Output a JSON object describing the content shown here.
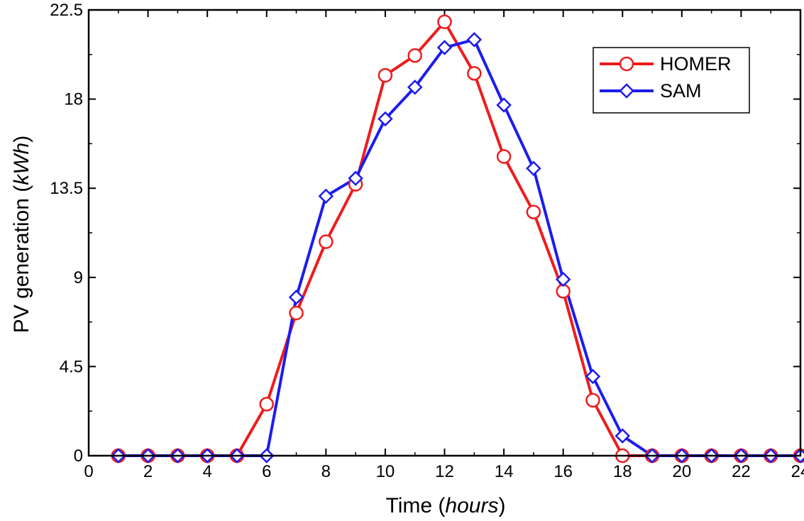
{
  "chart_data": {
    "type": "line",
    "title": "",
    "xlabel": "Time",
    "xlabel_unit": "hours",
    "ylabel": "PV generation",
    "ylabel_unit": "kWh",
    "xlim": [
      0,
      24
    ],
    "ylim": [
      0,
      22.5
    ],
    "x_ticks": [
      "0",
      "2",
      "4",
      "6",
      "8",
      "10",
      "12",
      "14",
      "16",
      "18",
      "20",
      "22",
      "24"
    ],
    "y_ticks": [
      "0",
      "4.5",
      "9",
      "13.5",
      "18",
      "22.5"
    ],
    "grid": false,
    "legend_position": "top-right",
    "series": [
      {
        "name": "HOMER",
        "color": "#ee1c1c",
        "marker": "circle",
        "x": [
          1,
          2,
          3,
          4,
          5,
          6,
          7,
          8,
          9,
          10,
          11,
          12,
          13,
          14,
          15,
          16,
          17,
          18,
          19,
          20,
          21,
          22,
          23,
          24
        ],
        "values": [
          0,
          0,
          0,
          0,
          0,
          2.6,
          7.2,
          10.8,
          13.7,
          19.2,
          20.2,
          21.9,
          19.3,
          15.1,
          12.3,
          8.3,
          2.8,
          0,
          0,
          0,
          0,
          0,
          0,
          0
        ]
      },
      {
        "name": "SAM",
        "color": "#1c1cee",
        "marker": "diamond",
        "x": [
          1,
          2,
          3,
          4,
          5,
          6,
          7,
          8,
          9,
          10,
          11,
          12,
          13,
          14,
          15,
          16,
          17,
          18,
          19,
          20,
          21,
          22,
          23,
          24
        ],
        "values": [
          0,
          0,
          0,
          0,
          0,
          0,
          8.0,
          13.1,
          14.0,
          17.0,
          18.6,
          20.6,
          21.0,
          17.7,
          14.5,
          8.9,
          4.0,
          1.0,
          0,
          0,
          0,
          0,
          0,
          0
        ]
      }
    ]
  }
}
